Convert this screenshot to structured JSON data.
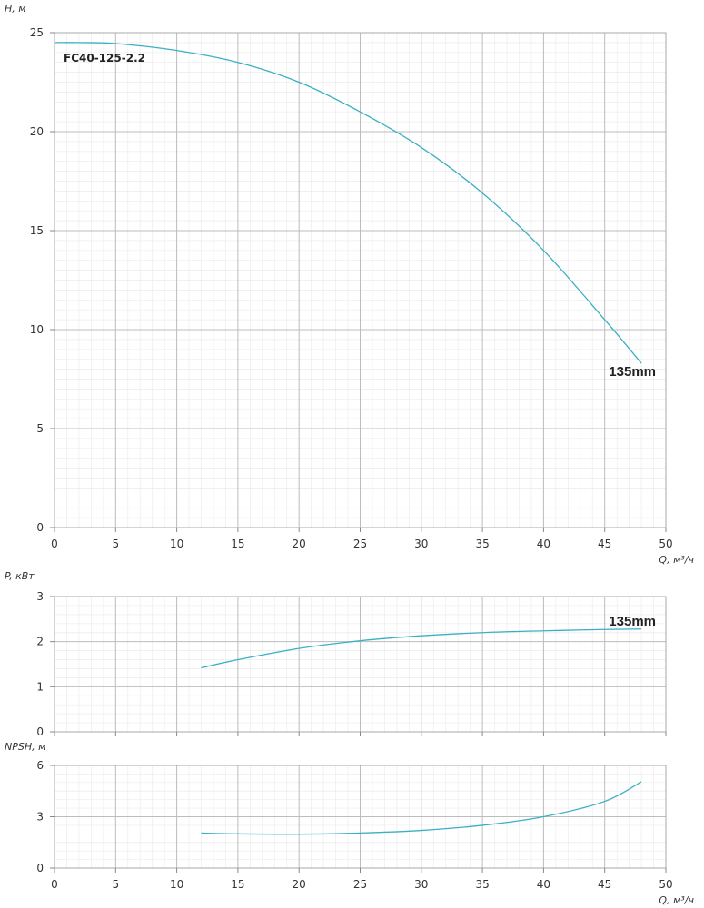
{
  "chart_data": [
    {
      "type": "line",
      "title": "",
      "annotation": "FC40-125-2.2",
      "ylabel": "H, м",
      "xlabel": "Q, м³/ч",
      "xlim": [
        0,
        50
      ],
      "ylim": [
        0,
        25
      ],
      "xticks": [
        0,
        5,
        10,
        15,
        20,
        25,
        30,
        35,
        40,
        45,
        50
      ],
      "yticks": [
        0,
        5,
        10,
        15,
        20,
        25
      ],
      "grid": true,
      "color": "#3ab0c3",
      "series": [
        {
          "name": "135mm",
          "x": [
            0,
            2,
            5,
            10,
            15,
            20,
            25,
            30,
            35,
            40,
            45,
            48
          ],
          "y": [
            24.5,
            24.5,
            24.45,
            24.1,
            23.5,
            22.5,
            21.0,
            19.2,
            16.9,
            14.0,
            10.5,
            8.3
          ]
        }
      ]
    },
    {
      "type": "line",
      "title": "",
      "ylabel": "P, кВт",
      "xlabel": "",
      "xlim": [
        0,
        50
      ],
      "ylim": [
        0,
        3
      ],
      "xticks": [
        0,
        5,
        10,
        15,
        20,
        25,
        30,
        35,
        40,
        45,
        50
      ],
      "yticks": [
        0,
        1,
        2,
        3
      ],
      "grid": true,
      "color": "#3ab0c3",
      "series": [
        {
          "name": "135mm",
          "x": [
            12,
            15,
            20,
            25,
            30,
            35,
            40,
            45,
            48
          ],
          "y": [
            1.42,
            1.6,
            1.85,
            2.02,
            2.13,
            2.2,
            2.24,
            2.27,
            2.28
          ]
        }
      ]
    },
    {
      "type": "line",
      "title": "",
      "ylabel": "NPSH, м",
      "xlabel": "Q, м³/ч",
      "xlim": [
        0,
        50
      ],
      "ylim": [
        0,
        6
      ],
      "xticks": [
        0,
        5,
        10,
        15,
        20,
        25,
        30,
        35,
        40,
        45,
        50
      ],
      "yticks": [
        0,
        3,
        6
      ],
      "grid": true,
      "color": "#3ab0c3",
      "series": [
        {
          "name": "",
          "x": [
            12,
            15,
            20,
            25,
            30,
            35,
            40,
            45,
            48
          ],
          "y": [
            2.05,
            2.0,
            1.98,
            2.05,
            2.2,
            2.5,
            3.0,
            3.9,
            5.05
          ]
        }
      ]
    }
  ]
}
